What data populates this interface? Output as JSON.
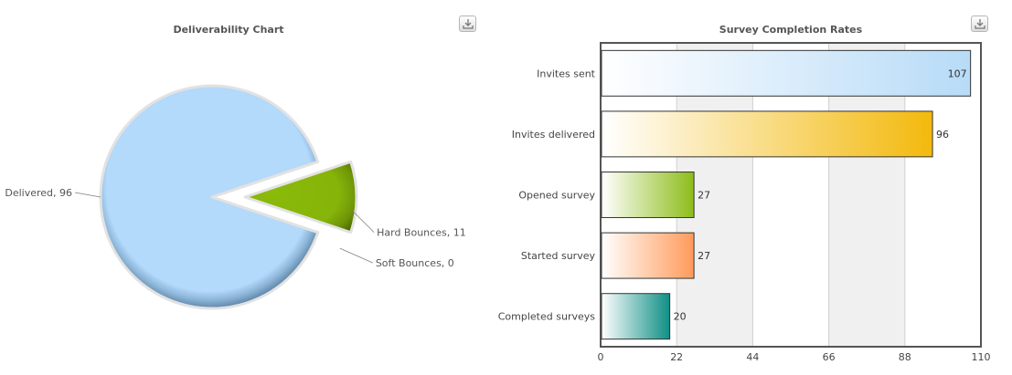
{
  "pie_panel": {
    "title": "Deliverability Chart",
    "export_icon": "download-icon"
  },
  "bar_panel": {
    "title": "Survey Completion Rates",
    "export_icon": "download-icon"
  },
  "chart_data": [
    {
      "type": "pie",
      "title": "Deliverability Chart",
      "slices": [
        {
          "label": "Delivered",
          "value": 96,
          "color": "#b3d9fb",
          "display": "Delivered, 96"
        },
        {
          "label": "Hard Bounces",
          "value": 11,
          "color": "#8aba0a",
          "display": "Hard Bounces, 11"
        },
        {
          "label": "Soft Bounces",
          "value": 0,
          "color": "#ffffff",
          "display": "Soft Bounces, 0"
        }
      ]
    },
    {
      "type": "bar",
      "orientation": "horizontal",
      "title": "Survey Completion Rates",
      "categories": [
        "Invites sent",
        "Invites delivered",
        "Opened survey",
        "Started survey",
        "Completed surveys"
      ],
      "values": [
        107,
        96,
        27,
        27,
        20
      ],
      "value_labels": [
        "107",
        "96",
        "27",
        "27",
        "20"
      ],
      "colors": [
        "#b7dbf7",
        "#f3b90c",
        "#8dbd1a",
        "#ff9a5a",
        "#0f8f86"
      ],
      "xlim": [
        0,
        110
      ],
      "ticks": [
        0,
        22,
        44,
        66,
        88,
        110
      ],
      "tick_labels": [
        "0",
        "22",
        "44",
        "66",
        "88",
        "110"
      ],
      "grid": true
    }
  ]
}
